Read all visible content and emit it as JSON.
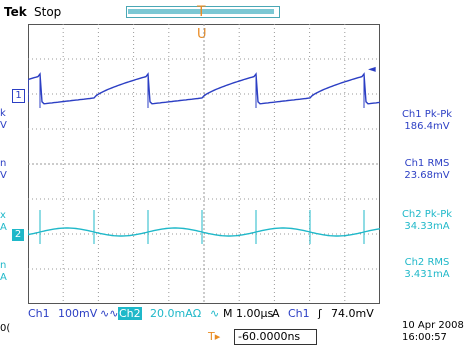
{
  "header": {
    "brand": "Tek",
    "state": "Stop",
    "trigger_position_marker": "T",
    "trigger_level_marker": "U"
  },
  "markers": {
    "ch1": "1",
    "ch2": "2",
    "ch1_trigger_arrow": "◄"
  },
  "left_fragments": [
    "k",
    "V",
    "n",
    "V",
    "x",
    "A",
    "n",
    "A"
  ],
  "measurements": [
    {
      "label": "Ch1 Pk-Pk",
      "value": "186.4mV",
      "channel": "ch1"
    },
    {
      "label": "Ch1 RMS",
      "value": "23.68mV",
      "channel": "ch1"
    },
    {
      "label": "Ch2 Pk-Pk",
      "value": "34.33mA",
      "channel": "ch2"
    },
    {
      "label": "Ch2 RMS",
      "value": "3.431mA",
      "channel": "ch2"
    }
  ],
  "status": {
    "ch1_label": "Ch1",
    "ch1_scale": "100mV",
    "ch1_coupling": "∿∿",
    "ch2_label": "Ch2",
    "ch2_scale": "20.0mAΩ",
    "ch2_coupling": "∿",
    "timebase": "M 1.00µs",
    "trigger_mode": "A",
    "trigger_source": "Ch1",
    "trigger_slope": "ʃ",
    "trigger_level": "74.0mV"
  },
  "footer": {
    "left_fragment": "0(",
    "position_icon": "T▸",
    "position_value": "-60.0000ns",
    "date": "10 Apr  2008",
    "time": "16:00:57"
  },
  "colors": {
    "ch1": "#2c3fc4",
    "ch2": "#1fb8c9",
    "trigger": "#e98b22",
    "grid": "#9a9a9a"
  }
}
